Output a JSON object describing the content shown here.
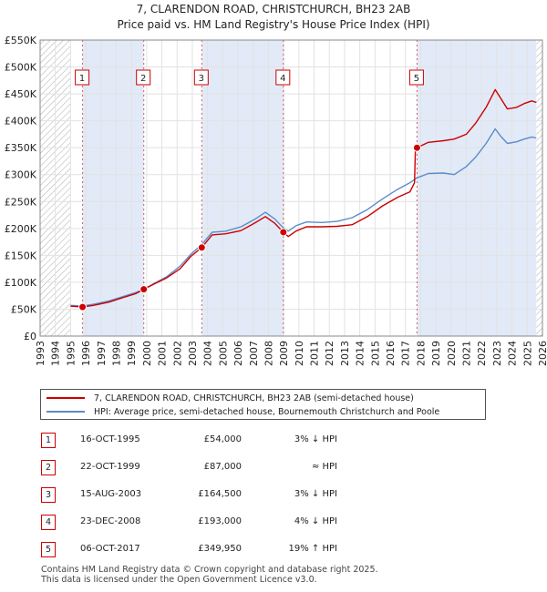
{
  "chart_data": {
    "type": "line",
    "title": "7, CLARENDON ROAD, CHRISTCHURCH, BH23 2AB",
    "subtitle": "Price paid vs. HM Land Registry's House Price Index (HPI)",
    "xlim": [
      1993,
      2026
    ],
    "ylim": [
      0,
      550000
    ],
    "x_ticks": [
      "1993",
      "1994",
      "1995",
      "1996",
      "1997",
      "1998",
      "1999",
      "2000",
      "2001",
      "2002",
      "2003",
      "2004",
      "2005",
      "2006",
      "2007",
      "2008",
      "2009",
      "2010",
      "2011",
      "2012",
      "2013",
      "2014",
      "2015",
      "2016",
      "2017",
      "2018",
      "2019",
      "2020",
      "2021",
      "2022",
      "2023",
      "2024",
      "2025",
      "2026"
    ],
    "y_ticks": [
      {
        "value": 0,
        "label": "£0"
      },
      {
        "value": 50000,
        "label": "£50K"
      },
      {
        "value": 100000,
        "label": "£100K"
      },
      {
        "value": 150000,
        "label": "£150K"
      },
      {
        "value": 200000,
        "label": "£200K"
      },
      {
        "value": 250000,
        "label": "£250K"
      },
      {
        "value": 300000,
        "label": "£300K"
      },
      {
        "value": 350000,
        "label": "£350K"
      },
      {
        "value": 400000,
        "label": "£400K"
      },
      {
        "value": 450000,
        "label": "£450K"
      },
      {
        "value": 500000,
        "label": "£500K"
      },
      {
        "value": 550000,
        "label": "£550K"
      }
    ],
    "data_start": 1995.0,
    "data_end": 2025.6,
    "series": [
      {
        "name": "7, CLARENDON ROAD, CHRISTCHURCH, BH23 2AB (semi-detached house)",
        "color": "#cc0000",
        "points": [
          [
            1995.0,
            55500
          ],
          [
            1995.79,
            54000
          ],
          [
            1996.5,
            57000
          ],
          [
            1997.5,
            63000
          ],
          [
            1998.5,
            72000
          ],
          [
            1999.3,
            79000
          ],
          [
            1999.81,
            87000
          ],
          [
            2000.5,
            97000
          ],
          [
            2001.3,
            108000
          ],
          [
            2002.2,
            125000
          ],
          [
            2002.9,
            148000
          ],
          [
            2003.62,
            164500
          ],
          [
            2004.3,
            188000
          ],
          [
            2005.2,
            190000
          ],
          [
            2006.2,
            196000
          ],
          [
            2007.1,
            210000
          ],
          [
            2007.8,
            222000
          ],
          [
            2008.4,
            210000
          ],
          [
            2008.98,
            193000
          ],
          [
            2009.3,
            185000
          ],
          [
            2009.8,
            195000
          ],
          [
            2010.5,
            203000
          ],
          [
            2011.5,
            203000
          ],
          [
            2012.5,
            204000
          ],
          [
            2013.5,
            207000
          ],
          [
            2014.5,
            222000
          ],
          [
            2015.5,
            242000
          ],
          [
            2016.5,
            258000
          ],
          [
            2017.3,
            268000
          ],
          [
            2017.6,
            285000
          ],
          [
            2017.65,
            345000
          ],
          [
            2017.76,
            349950
          ],
          [
            2018.5,
            360000
          ],
          [
            2019.5,
            363000
          ],
          [
            2020.2,
            366000
          ],
          [
            2021.0,
            375000
          ],
          [
            2021.6,
            395000
          ],
          [
            2022.3,
            425000
          ],
          [
            2022.9,
            458000
          ],
          [
            2023.3,
            440000
          ],
          [
            2023.7,
            422000
          ],
          [
            2024.3,
            425000
          ],
          [
            2024.8,
            432000
          ],
          [
            2025.3,
            437000
          ],
          [
            2025.6,
            434000
          ]
        ]
      },
      {
        "name": "HPI: Average price, semi-detached house, Bournemouth Christchurch and Poole",
        "color": "#5b8cc8",
        "points": [
          [
            1995.0,
            57000
          ],
          [
            1995.79,
            56000
          ],
          [
            1996.5,
            59000
          ],
          [
            1997.5,
            65000
          ],
          [
            1998.5,
            74000
          ],
          [
            1999.3,
            81000
          ],
          [
            1999.81,
            87000
          ],
          [
            2000.5,
            98000
          ],
          [
            2001.3,
            110000
          ],
          [
            2002.2,
            130000
          ],
          [
            2002.9,
            152000
          ],
          [
            2003.62,
            170000
          ],
          [
            2004.3,
            193000
          ],
          [
            2005.2,
            195000
          ],
          [
            2006.2,
            203000
          ],
          [
            2007.1,
            217000
          ],
          [
            2007.8,
            230000
          ],
          [
            2008.4,
            218000
          ],
          [
            2008.98,
            201000
          ],
          [
            2009.3,
            195000
          ],
          [
            2009.8,
            205000
          ],
          [
            2010.5,
            212000
          ],
          [
            2011.5,
            211000
          ],
          [
            2012.5,
            213000
          ],
          [
            2013.5,
            220000
          ],
          [
            2014.5,
            235000
          ],
          [
            2015.5,
            255000
          ],
          [
            2016.5,
            273000
          ],
          [
            2017.3,
            285000
          ],
          [
            2017.76,
            294000
          ],
          [
            2018.5,
            302000
          ],
          [
            2019.5,
            303000
          ],
          [
            2020.2,
            300000
          ],
          [
            2021.0,
            315000
          ],
          [
            2021.6,
            332000
          ],
          [
            2022.3,
            358000
          ],
          [
            2022.9,
            385000
          ],
          [
            2023.3,
            370000
          ],
          [
            2023.7,
            358000
          ],
          [
            2024.3,
            361000
          ],
          [
            2024.8,
            366000
          ],
          [
            2025.3,
            370000
          ],
          [
            2025.6,
            368000
          ]
        ]
      }
    ],
    "sales": [
      {
        "id": "1",
        "x": 1995.79,
        "value": 54000
      },
      {
        "id": "2",
        "x": 1999.81,
        "value": 87000
      },
      {
        "id": "3",
        "x": 2003.62,
        "value": 164500
      },
      {
        "id": "4",
        "x": 2008.98,
        "value": 193000
      },
      {
        "id": "5",
        "x": 2017.76,
        "value": 349950
      }
    ],
    "shaded_periods": [
      [
        1995.79,
        1999.81
      ],
      [
        2003.62,
        2008.98
      ],
      [
        2017.76,
        2026
      ]
    ]
  },
  "legend": {
    "property_label": "7, CLARENDON ROAD, CHRISTCHURCH, BH23 2AB (semi-detached house)",
    "hpi_label": "HPI: Average price, semi-detached house, Bournemouth Christchurch and Poole"
  },
  "sales_table": [
    {
      "num": "1",
      "date": "16-OCT-1995",
      "price": "£54,000",
      "rel": "3% ↓ HPI"
    },
    {
      "num": "2",
      "date": "22-OCT-1999",
      "price": "£87,000",
      "rel": "≈ HPI"
    },
    {
      "num": "3",
      "date": "15-AUG-2003",
      "price": "£164,500",
      "rel": "3% ↓ HPI"
    },
    {
      "num": "4",
      "date": "23-DEC-2008",
      "price": "£193,000",
      "rel": "4% ↓ HPI"
    },
    {
      "num": "5",
      "date": "06-OCT-2017",
      "price": "£349,950",
      "rel": "19% ↑ HPI"
    }
  ],
  "footer": {
    "line1": "Contains HM Land Registry data © Crown copyright and database right 2025.",
    "line2": "This data is licensed under the Open Government Licence v3.0."
  },
  "colors": {
    "property": "#cc0000",
    "hpi": "#5b8cc8",
    "shade": "#dde6f7",
    "hatch": "#b0b0b0"
  }
}
